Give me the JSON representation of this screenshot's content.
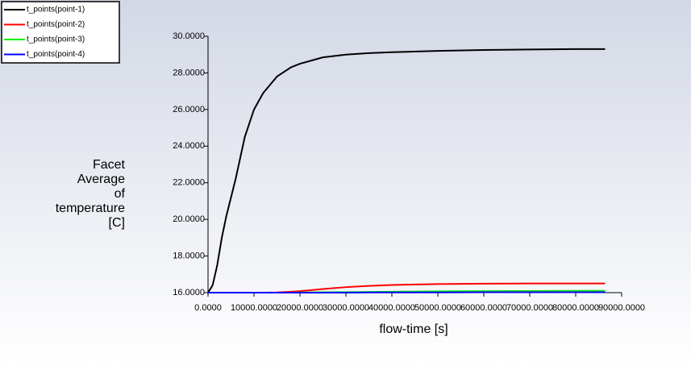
{
  "chart_data": {
    "type": "line",
    "xlabel": "flow-time [s]",
    "ylabel": [
      "Facet",
      "Average",
      "of",
      "temperature",
      "[C]"
    ],
    "x": [
      0,
      1000,
      2000,
      3000,
      4000,
      5000,
      6000,
      8000,
      10000,
      12000,
      15000,
      18000,
      20000,
      25000,
      30000,
      35000,
      40000,
      50000,
      60000,
      70000,
      80000,
      86400
    ],
    "series": [
      {
        "name": "t_points(point-1)",
        "color": "#000000",
        "values": [
          16,
          16.4,
          17.5,
          19.0,
          20.2,
          21.2,
          22.2,
          24.5,
          26.0,
          26.9,
          27.8,
          28.3,
          28.5,
          28.85,
          29.0,
          29.08,
          29.13,
          29.2,
          29.25,
          29.28,
          29.3,
          29.3
        ]
      },
      {
        "name": "t_points(point-2)",
        "color": "#ff0000",
        "values": [
          16,
          16,
          16,
          16,
          16,
          16,
          16,
          16,
          16,
          16,
          16.01,
          16.05,
          16.08,
          16.2,
          16.3,
          16.37,
          16.42,
          16.47,
          16.49,
          16.5,
          16.5,
          16.5
        ]
      },
      {
        "name": "t_points(point-3)",
        "color": "#00ee00",
        "values": [
          16,
          16,
          16,
          16,
          16,
          16,
          16,
          16,
          16,
          16,
          16,
          16,
          16.01,
          16.02,
          16.03,
          16.04,
          16.05,
          16.07,
          16.08,
          16.09,
          16.1,
          16.1
        ]
      },
      {
        "name": "t_points(point-4)",
        "color": "#0000ff",
        "values": [
          16,
          16,
          16,
          16,
          16,
          16,
          16,
          16,
          16,
          16,
          16,
          16,
          16,
          16,
          16,
          16.01,
          16.01,
          16.01,
          16.02,
          16.02,
          16.02,
          16.02
        ]
      }
    ],
    "xlim": [
      0,
      90000
    ],
    "xticks": [
      {
        "value": 0,
        "label": "0.0000"
      },
      {
        "value": 10000,
        "label": "10000.0000"
      },
      {
        "value": 20000,
        "label": "20000.0000"
      },
      {
        "value": 30000,
        "label": "30000.0000"
      },
      {
        "value": 40000,
        "label": "40000.0000"
      },
      {
        "value": 50000,
        "label": "50000.0000"
      },
      {
        "value": 60000,
        "label": "60000.0000"
      },
      {
        "value": 70000,
        "label": "70000.0000"
      },
      {
        "value": 80000,
        "label": "80000.0000"
      },
      {
        "value": 90000,
        "label": "90000.0000"
      }
    ],
    "ylim": [
      16,
      30
    ],
    "yticks": [
      {
        "value": 16,
        "label": "16.0000"
      },
      {
        "value": 18,
        "label": "18.0000"
      },
      {
        "value": 20,
        "label": "20.0000"
      },
      {
        "value": 22,
        "label": "22.0000"
      },
      {
        "value": 24,
        "label": "24.0000"
      },
      {
        "value": 26,
        "label": "26.0000"
      },
      {
        "value": 28,
        "label": "28.0000"
      },
      {
        "value": 30,
        "label": "30.0000"
      }
    ],
    "legend": "top-left"
  }
}
